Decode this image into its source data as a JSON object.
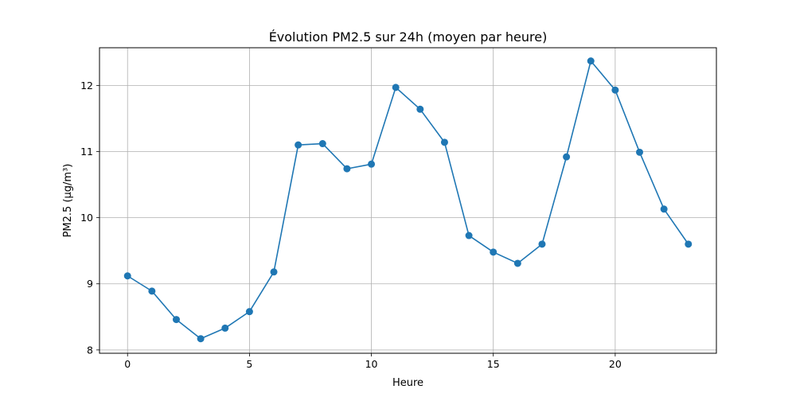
{
  "chart_data": {
    "type": "line",
    "title": "Évolution PM2.5 sur 24h (moyen par heure)",
    "xlabel": "Heure",
    "ylabel": "PM2.5 (µg/m³)",
    "xlim": [
      -1.15,
      24.15
    ],
    "ylim": [
      7.95,
      12.57
    ],
    "xticks": [
      0,
      5,
      10,
      15,
      20
    ],
    "yticks": [
      8,
      9,
      10,
      11,
      12
    ],
    "grid": true,
    "legend": "none",
    "series": [
      {
        "color": "#1f77b4",
        "marker": "circle",
        "x": [
          0,
          1,
          2,
          3,
          4,
          5,
          6,
          7,
          8,
          9,
          10,
          11,
          12,
          13,
          14,
          15,
          16,
          17,
          18,
          19,
          20,
          21,
          22,
          23
        ],
        "y": [
          9.12,
          8.89,
          8.46,
          8.17,
          8.33,
          8.58,
          9.18,
          11.1,
          11.12,
          10.74,
          10.81,
          11.97,
          11.64,
          11.14,
          9.73,
          9.48,
          9.31,
          9.6,
          10.92,
          12.37,
          11.93,
          10.99,
          10.13,
          9.6
        ]
      }
    ]
  }
}
